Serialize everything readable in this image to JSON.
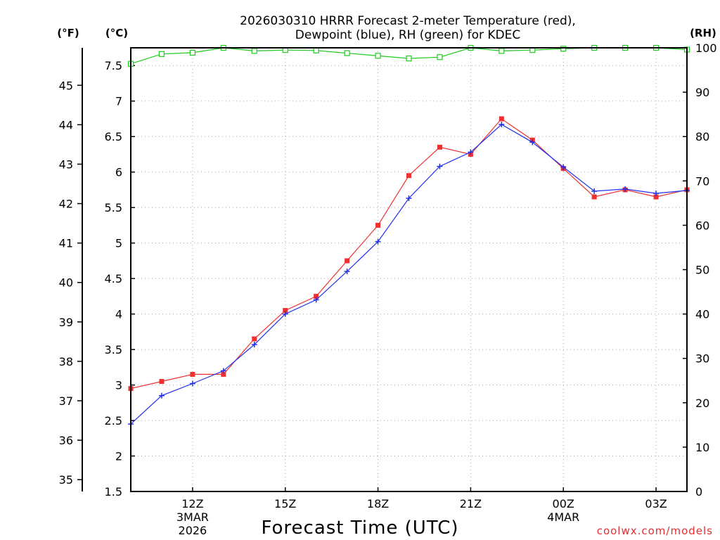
{
  "chart_data": {
    "type": "line",
    "title_line1": "2026030310 HRRR Forecast 2-meter Temperature (red),",
    "title_line2": "Dewpoint (blue), RH (green) for KDEC",
    "xlabel": "Forecast Time (UTC)",
    "credit": "coolwx.com/models",
    "unit_left_f": "(°F)",
    "unit_left_c": "(°C)",
    "unit_right": "(RH)",
    "x": [
      10,
      11,
      12,
      13,
      14,
      15,
      16,
      17,
      18,
      19,
      20,
      21,
      22,
      23,
      24,
      25,
      26,
      27,
      28
    ],
    "xlim": [
      10,
      28
    ],
    "ylim_c": [
      1.5,
      7.75
    ],
    "ylim_rh": [
      0,
      100
    ],
    "f_ticks": [
      "35",
      "36",
      "37",
      "38",
      "39",
      "40",
      "41",
      "42",
      "43",
      "44",
      "45"
    ],
    "c_ticks": [
      "1.5",
      "2",
      "2.5",
      "3",
      "3.5",
      "4",
      "4.5",
      "5",
      "5.5",
      "6",
      "6.5",
      "7",
      "7.5"
    ],
    "rh_ticks": [
      "0",
      "10",
      "20",
      "30",
      "40",
      "50",
      "60",
      "70",
      "80",
      "90",
      "100"
    ],
    "x_ticks": [
      {
        "x": 12,
        "label": "12Z",
        "sub1": "3MAR",
        "sub2": "2026"
      },
      {
        "x": 15,
        "label": "15Z",
        "sub1": "",
        "sub2": ""
      },
      {
        "x": 18,
        "label": "18Z",
        "sub1": "",
        "sub2": ""
      },
      {
        "x": 21,
        "label": "21Z",
        "sub1": "",
        "sub2": ""
      },
      {
        "x": 24,
        "label": "00Z",
        "sub1": "4MAR",
        "sub2": ""
      },
      {
        "x": 27,
        "label": "03Z",
        "sub1": "",
        "sub2": ""
      }
    ],
    "series": [
      {
        "name": "Temperature",
        "color": "#ee3030",
        "marker": "square-filled",
        "values": [
          2.95,
          3.05,
          3.15,
          3.15,
          3.65,
          4.05,
          4.25,
          4.75,
          5.25,
          5.95,
          6.35,
          6.25,
          6.75,
          6.45,
          6.05,
          5.65,
          5.75,
          5.65,
          5.75
        ]
      },
      {
        "name": "Dewpoint",
        "color": "#2030ee",
        "marker": "plus",
        "values": [
          2.45,
          2.85,
          3.02,
          3.2,
          3.57,
          4.0,
          4.2,
          4.6,
          5.02,
          5.63,
          6.08,
          6.28,
          6.67,
          6.42,
          6.07,
          5.73,
          5.76,
          5.7,
          5.74
        ]
      },
      {
        "name": "RH",
        "color": "#20cc20",
        "marker": "square-open",
        "axis": "rh",
        "values": [
          96.4,
          98.6,
          98.9,
          100,
          99.3,
          99.5,
          99.4,
          98.8,
          98.2,
          97.6,
          97.9,
          100,
          99.3,
          99.5,
          99.8,
          100,
          100,
          100,
          99.6
        ]
      }
    ]
  }
}
